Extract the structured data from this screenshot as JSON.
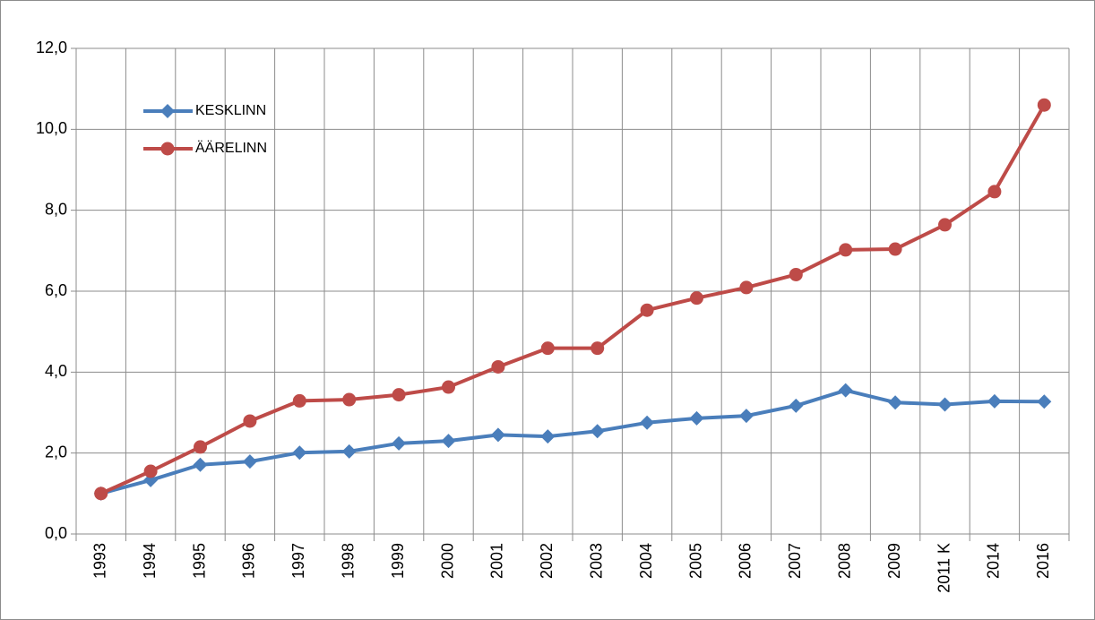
{
  "chart_data": {
    "type": "line",
    "categories": [
      "1993",
      "1994",
      "1995",
      "1996",
      "1997",
      "1998",
      "1999",
      "2000",
      "2001",
      "2002",
      "2003",
      "2004",
      "2005",
      "2006",
      "2007",
      "2008",
      "2009",
      "2011 K",
      "2014",
      "2016"
    ],
    "series": [
      {
        "name": "KESKLINN",
        "color": "#4a7ebb",
        "marker": "diamond",
        "values": [
          1.0,
          1.33,
          1.71,
          1.79,
          2.01,
          2.04,
          2.24,
          2.3,
          2.45,
          2.41,
          2.54,
          2.75,
          2.86,
          2.92,
          3.17,
          3.55,
          3.25,
          3.2,
          3.28,
          3.27
        ]
      },
      {
        "name": "ÄÄRELINN",
        "color": "#be4b48",
        "marker": "circle",
        "values": [
          1.0,
          1.55,
          2.15,
          2.79,
          3.29,
          3.32,
          3.44,
          3.63,
          4.13,
          4.59,
          4.59,
          5.53,
          5.83,
          6.09,
          6.41,
          7.02,
          7.04,
          7.64,
          8.46,
          10.6
        ]
      }
    ],
    "ylim": [
      0,
      12
    ],
    "yticks": [
      {
        "value": 0,
        "label": "0,0"
      },
      {
        "value": 2,
        "label": "2,0"
      },
      {
        "value": 4,
        "label": "4,0"
      },
      {
        "value": 6,
        "label": "6,0"
      },
      {
        "value": 8,
        "label": "8,0"
      },
      {
        "value": 10,
        "label": "10,0"
      },
      {
        "value": 12,
        "label": "12,0"
      }
    ],
    "grid": true,
    "legend": "upper left"
  }
}
